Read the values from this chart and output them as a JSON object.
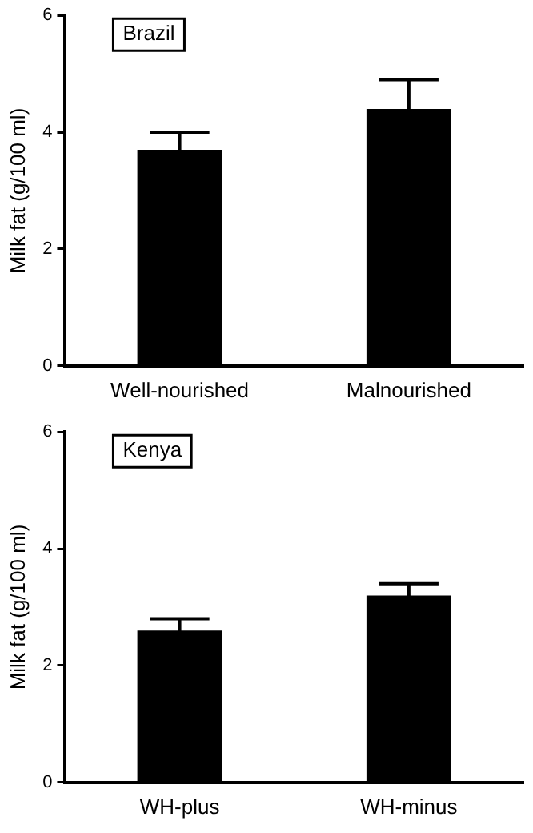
{
  "chart_data": [
    {
      "type": "bar",
      "title": "Brazil",
      "ylabel": "Milk fat (g/100 ml)",
      "categories": [
        "Well-nourished",
        "Malnourished"
      ],
      "values": [
        3.7,
        4.4
      ],
      "errors": [
        0.3,
        0.5
      ],
      "color": "#000000",
      "ylim": [
        0,
        6
      ],
      "yticks": [
        0,
        2,
        4,
        6
      ],
      "grid": false,
      "legend": false
    },
    {
      "type": "bar",
      "title": "Kenya",
      "ylabel": "Milk fat (g/100 ml)",
      "categories": [
        "WH-plus",
        "WH-minus"
      ],
      "values": [
        2.6,
        3.2
      ],
      "errors": [
        0.2,
        0.2
      ],
      "color": "#000000",
      "ylim": [
        0,
        6
      ],
      "yticks": [
        0,
        2,
        4,
        6
      ],
      "grid": false,
      "legend": false
    }
  ]
}
